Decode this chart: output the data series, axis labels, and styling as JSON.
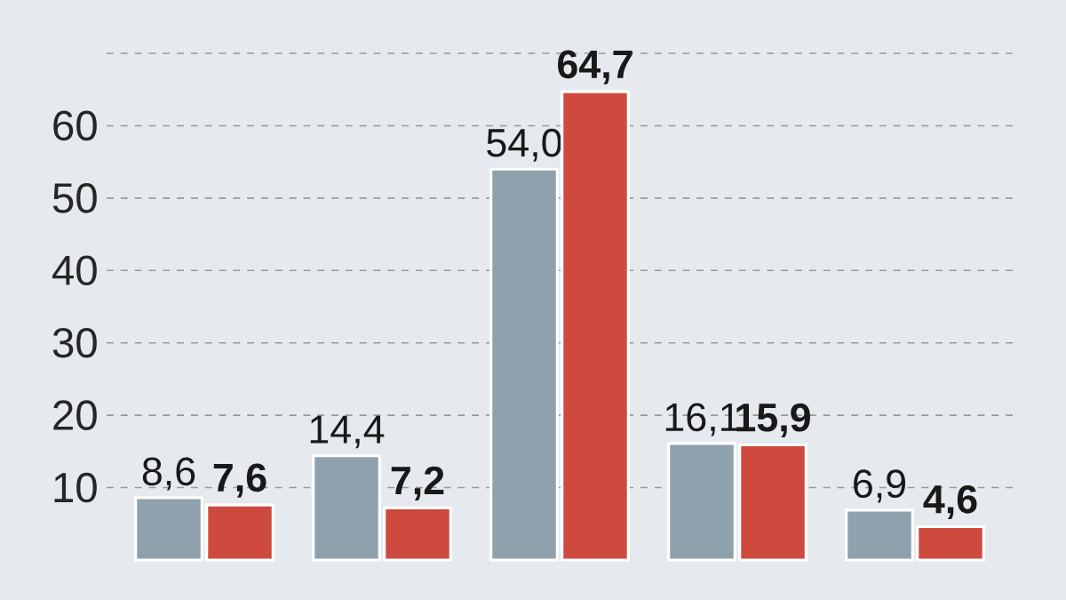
{
  "chart_data": {
    "type": "bar",
    "categories": [
      null,
      null,
      null,
      null,
      null
    ],
    "series": [
      {
        "color": "#8fa1ad",
        "values": [
          8.6,
          14.4,
          54.0,
          16.1,
          6.9
        ],
        "value_labels": [
          "8,6",
          "14,4",
          "54,0",
          "16,1",
          "6,9"
        ]
      },
      {
        "color": "#cf4a3e",
        "values": [
          7.6,
          7.2,
          64.7,
          15.9,
          4.6
        ],
        "value_labels": [
          "**7,6**",
          "**7,2**",
          "**64,7**",
          "**15,9**",
          "**4,6**"
        ]
      }
    ],
    "ylim": [
      0,
      70
    ],
    "yticks": [
      10,
      20,
      30,
      40,
      50,
      60,
      {
        "value": 70,
        "label": null
      }
    ],
    "grid": "y",
    "tick_labels": "y"
  }
}
